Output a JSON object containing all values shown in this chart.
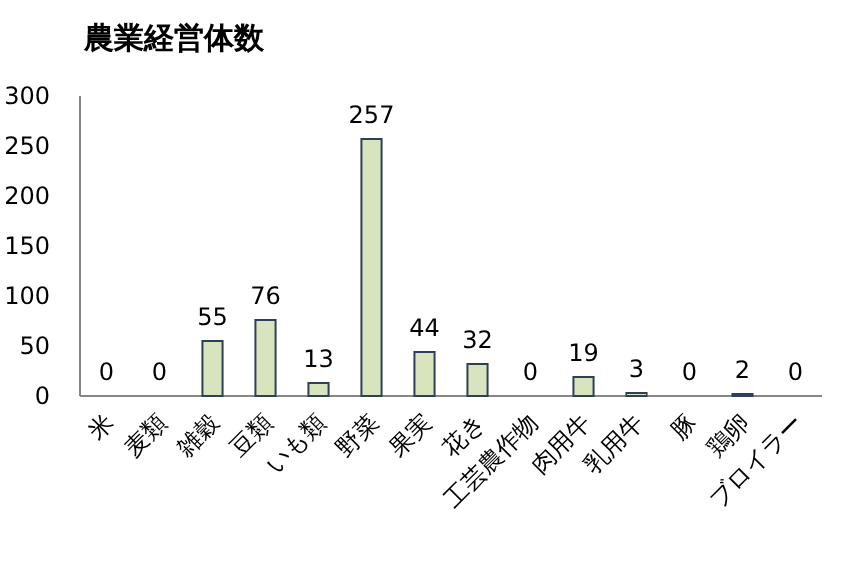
{
  "chart_data": {
    "type": "bar",
    "title": "農業経営体数",
    "categories": [
      "米",
      "麦類",
      "雑穀",
      "豆類",
      "いも類",
      "野菜",
      "果実",
      "花き",
      "工芸農作物",
      "肉用牛",
      "乳用牛",
      "豚",
      "鶏卵",
      "ブロイラー"
    ],
    "values": [
      0,
      0,
      55,
      76,
      13,
      257,
      44,
      32,
      0,
      19,
      3,
      0,
      2,
      0
    ],
    "color": "#d7e4bd",
    "ylim": [
      0,
      300
    ],
    "yticks": [
      0,
      50,
      100,
      150,
      200,
      250,
      300
    ],
    "data_labels": true,
    "grid": false
  }
}
